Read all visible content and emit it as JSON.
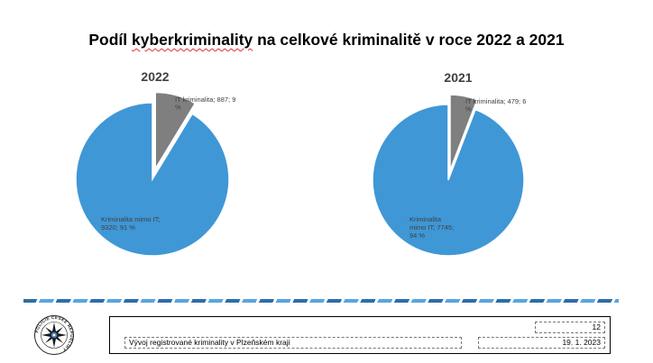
{
  "slide": {
    "title_prefix": "Podíl ",
    "title_underlined": "kyberkriminality",
    "title_suffix": " na celkové kriminalitě v roce 2022 a 2021"
  },
  "chart_data": [
    {
      "type": "pie",
      "title": "2022",
      "slices": [
        {
          "label": "IT kriminalita",
          "value": 887,
          "percent": 9,
          "label_lines": [
            "IT kriminalita; 887; 9",
            "%"
          ],
          "color": "#7f7f7f",
          "exploded": true
        },
        {
          "label": "Kriminalita mimo IT",
          "value": 9320,
          "percent": 91,
          "label_lines": [
            "Kriminalita mimo IT;",
            "9320; 91 %"
          ],
          "color": "#3f97d6",
          "exploded": false
        }
      ]
    },
    {
      "type": "pie",
      "title": "2021",
      "slices": [
        {
          "label": "IT kriminalita",
          "value": 479,
          "percent": 6,
          "label_lines": [
            "IT kriminalita; 479; 6",
            "%"
          ],
          "color": "#7f7f7f",
          "exploded": true
        },
        {
          "label": "Kriminalita mimo IT",
          "value": 7745,
          "percent": 94,
          "label_lines": [
            "Kriminalita",
            "mimo IT; 7745;",
            "94 %"
          ],
          "color": "#3f97d6",
          "exploded": false
        }
      ]
    }
  ],
  "footer": {
    "page_number": "12",
    "description": "Vývoj registrované kriminality v Plzeňském kraji",
    "date": "19. 1. 2023",
    "logo_text": "POLICIE ČESKÉ REPUBLIKY"
  }
}
